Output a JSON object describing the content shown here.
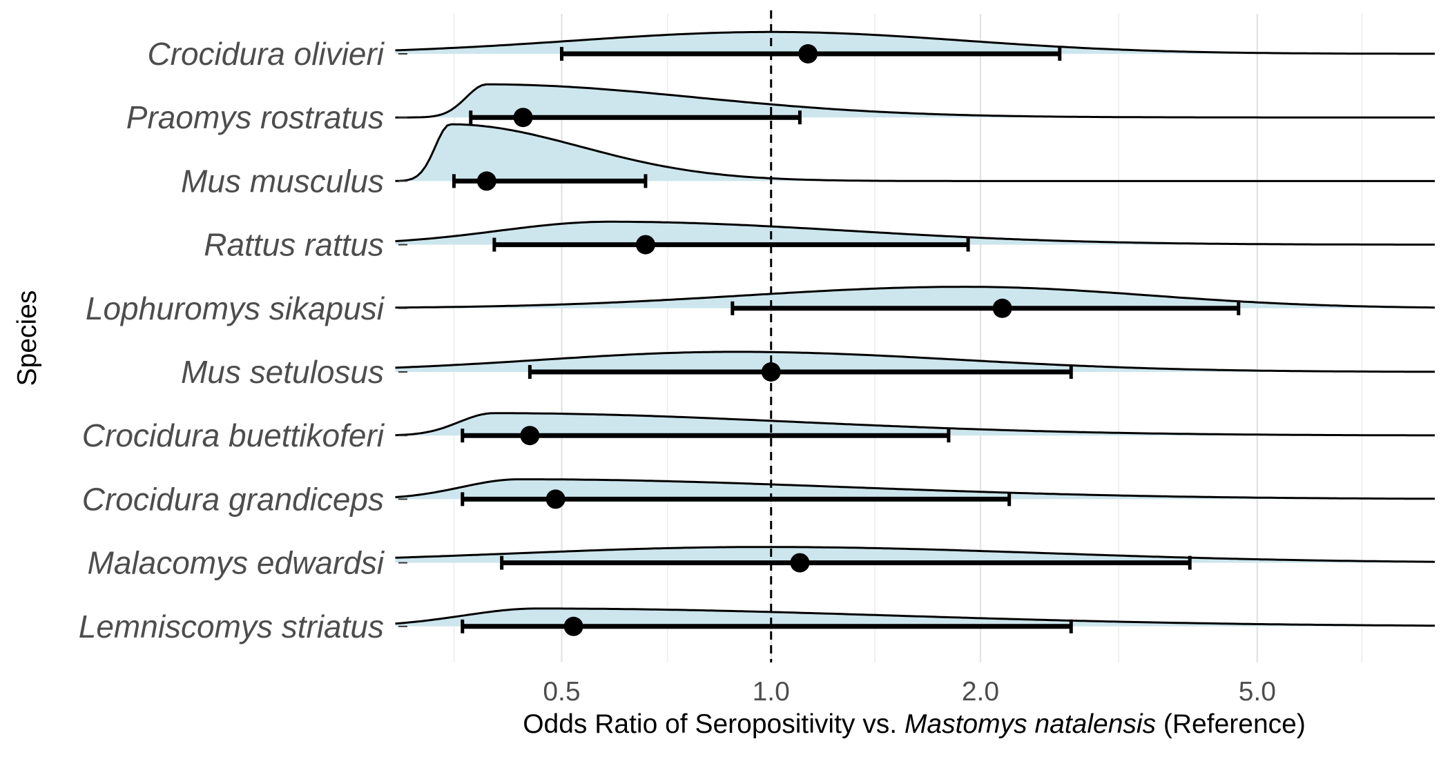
{
  "chart_data": {
    "type": "ridgeline-forest",
    "title": "",
    "xlabel": {
      "prefix": "Odds Ratio of Seropositivity vs. ",
      "italic": "Mastomys natalensis",
      "suffix": " (Reference)"
    },
    "ylabel": "Species",
    "x_scale": "log",
    "xlim": [
      0.3,
      9.0
    ],
    "x_ticks": [
      0.5,
      1.0,
      2.0,
      5.0
    ],
    "x_tick_labels": [
      "0.5",
      "1.0",
      "2.0",
      "5.0"
    ],
    "reference_line": 1.0,
    "grid": "vertical",
    "colors": {
      "density_fill": "#cde6ee",
      "line": "#000000",
      "grid_major": "#e5e5e5",
      "grid_minor": "#f0f0f0"
    },
    "species": [
      {
        "name": "Crocidura olivieri",
        "estimate": 1.13,
        "ci_low": 0.5,
        "ci_high": 2.6
      },
      {
        "name": "Praomys rostratus",
        "estimate": 0.44,
        "ci_low": 0.37,
        "ci_high": 1.1
      },
      {
        "name": "Mus musculus",
        "estimate": 0.39,
        "ci_low": 0.35,
        "ci_high": 0.66
      },
      {
        "name": "Rattus rattus",
        "estimate": 0.66,
        "ci_low": 0.4,
        "ci_high": 1.92
      },
      {
        "name": "Lophuromys sikapusi",
        "estimate": 2.15,
        "ci_low": 0.88,
        "ci_high": 4.7
      },
      {
        "name": "Mus setulosus",
        "estimate": 1.0,
        "ci_low": 0.45,
        "ci_high": 2.7
      },
      {
        "name": "Crocidura buettikoferi",
        "estimate": 0.45,
        "ci_low": 0.36,
        "ci_high": 1.8
      },
      {
        "name": "Crocidura grandiceps",
        "estimate": 0.49,
        "ci_low": 0.36,
        "ci_high": 2.2
      },
      {
        "name": "Malacomys edwardsi",
        "estimate": 1.1,
        "ci_low": 0.41,
        "ci_high": 4.0
      },
      {
        "name": "Lemniscomys striatus",
        "estimate": 0.52,
        "ci_low": 0.36,
        "ci_high": 2.7
      }
    ]
  }
}
